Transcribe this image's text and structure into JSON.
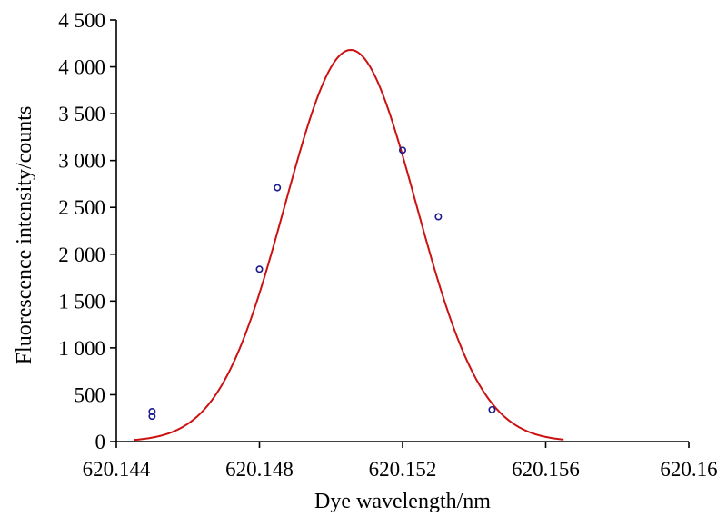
{
  "chart_data": {
    "type": "scatter",
    "xlabel": "Dye wavelength/nm",
    "ylabel": "Fluorescence intensity/counts",
    "xlim": [
      620.144,
      620.16
    ],
    "ylim": [
      0,
      4500
    ],
    "x_ticks": [
      620.144,
      620.148,
      620.152,
      620.156,
      620.16
    ],
    "x_tick_labels": [
      "620.144",
      "620.148",
      "620.152",
      "620.156",
      "620.16"
    ],
    "y_ticks": [
      0,
      500,
      1000,
      1500,
      2000,
      2500,
      3000,
      3500,
      4000,
      4500
    ],
    "y_tick_labels": [
      "0",
      "500",
      "1 000",
      "1 500",
      "2 000",
      "2 500",
      "3 000",
      "3 500",
      "4 000",
      "4 500"
    ],
    "grid": false,
    "legend": "none",
    "series": [
      {
        "kind": "points",
        "color": "#1a1a8c",
        "marker": "open-circle",
        "x": [
          620.145,
          620.145,
          620.148,
          620.1485,
          620.152,
          620.153,
          620.1545
        ],
        "y": [
          270,
          320,
          1840,
          2710,
          3110,
          2400,
          340
        ]
      },
      {
        "kind": "fit",
        "color": "#cc1111",
        "curve": "gaussian",
        "amplitude": 4180,
        "center": 620.15055,
        "sigma": 0.00183,
        "x_range": [
          620.1445,
          620.1565
        ]
      }
    ]
  }
}
